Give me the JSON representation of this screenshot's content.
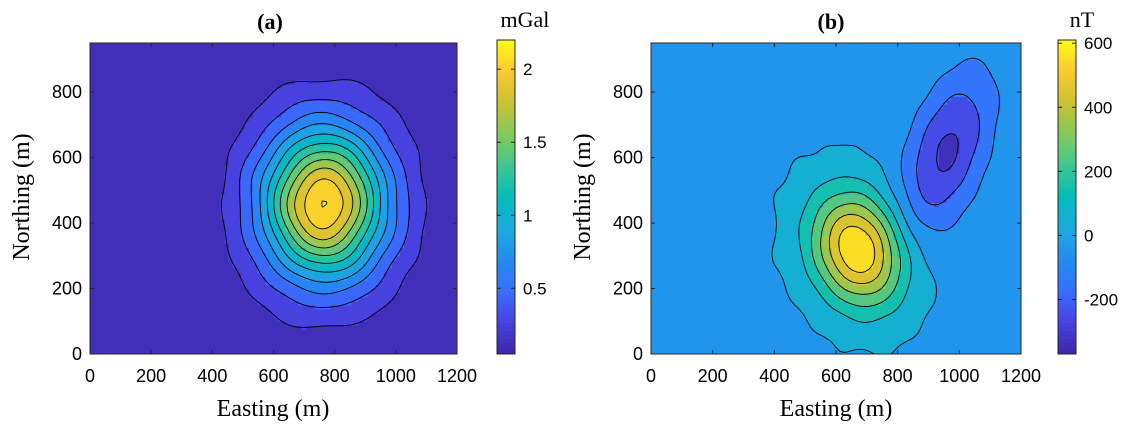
{
  "chart_data": [
    {
      "type": "contour",
      "panel_label": "(a)",
      "xlabel": "Easting (m)",
      "ylabel": "Northing (m)",
      "xlim": [
        0,
        1200
      ],
      "ylim": [
        0,
        950
      ],
      "xticks": [
        0,
        200,
        400,
        600,
        800,
        1000,
        1200
      ],
      "yticks": [
        0,
        200,
        400,
        600,
        800
      ],
      "colorbar": {
        "unit": "mGal",
        "range": [
          0.05,
          2.2
        ],
        "ticks": [
          0.5,
          1,
          1.5,
          2
        ],
        "tick_labels": [
          "0.5",
          "1",
          "1.5",
          "2"
        ]
      },
      "colormap": "parula",
      "anomaly": {
        "center": [
          765,
          460
        ],
        "peak": 2.15,
        "background": 0.05
      },
      "contour_levels": [
        0.18,
        0.35,
        0.55,
        0.75,
        0.95,
        1.15,
        1.35,
        1.55,
        1.75,
        1.95,
        2.1
      ]
    },
    {
      "type": "contour",
      "panel_label": "(b)",
      "xlabel": "Easting (m)",
      "ylabel": "Northing (m)",
      "xlim": [
        0,
        1200
      ],
      "ylim": [
        0,
        950
      ],
      "xticks": [
        0,
        200,
        400,
        600,
        800,
        1000,
        1200
      ],
      "yticks": [
        0,
        200,
        400,
        600,
        800
      ],
      "colorbar": {
        "unit": "nT",
        "range": [
          -370,
          610
        ],
        "ticks": [
          -200,
          0,
          200,
          400,
          600
        ],
        "tick_labels": [
          "-200",
          "0",
          "200",
          "400",
          "600"
        ]
      },
      "colormap": "parula",
      "anomaly": {
        "positive_center": [
          670,
          320
        ],
        "positive_peak": 600,
        "negative_center": [
          960,
          620
        ],
        "negative_peak": -360,
        "background": -20
      },
      "contour_levels": [
        -300,
        -200,
        -100,
        0,
        100,
        200,
        300,
        400,
        500
      ]
    }
  ]
}
